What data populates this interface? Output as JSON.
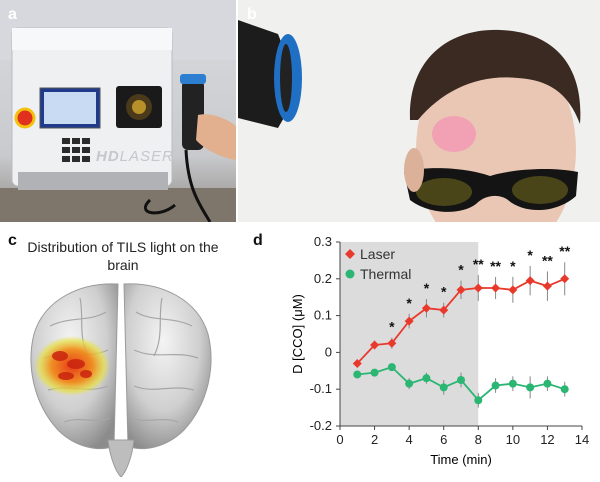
{
  "panels": {
    "a": {
      "label": "a",
      "device_brand": "LASER",
      "device_brand_prefix": "HD"
    },
    "b": {
      "label": "b"
    },
    "c": {
      "label": "c",
      "title": "Distribution of TILS light on the brain"
    },
    "d": {
      "label": "d"
    }
  },
  "chart_data": {
    "type": "line",
    "xlabel": "Time (min)",
    "ylabel": "D [CCO] (μM)",
    "xlim": [
      0,
      14
    ],
    "ylim": [
      -0.2,
      0.3
    ],
    "xticks": [
      0,
      2,
      4,
      6,
      8,
      10,
      12,
      14
    ],
    "yticks": [
      -0.2,
      -0.1,
      0,
      0.1,
      0.2,
      0.3
    ],
    "ytick_labels": [
      "-0.2",
      "-0.1",
      "0",
      "0.1",
      "0.2",
      "0.3"
    ],
    "shaded_region": [
      0,
      8
    ],
    "grid": false,
    "legend_position": "top-left",
    "x": [
      1,
      2,
      3,
      4,
      5,
      6,
      7,
      8,
      9,
      10,
      11,
      12,
      13
    ],
    "series": [
      {
        "name": "Laser",
        "color": "#e8392c",
        "marker": "diamond",
        "values": [
          -0.03,
          0.02,
          0.025,
          0.085,
          0.12,
          0.115,
          0.17,
          0.175,
          0.175,
          0.17,
          0.195,
          0.18,
          0.2
        ],
        "errors": [
          0.01,
          0.012,
          0.015,
          0.02,
          0.025,
          0.02,
          0.025,
          0.035,
          0.03,
          0.035,
          0.04,
          0.04,
          0.045
        ]
      },
      {
        "name": "Thermal",
        "color": "#2bb673",
        "marker": "circle",
        "values": [
          -0.06,
          -0.055,
          -0.04,
          -0.085,
          -0.07,
          -0.095,
          -0.075,
          -0.13,
          -0.09,
          -0.085,
          -0.095,
          -0.085,
          -0.1
        ],
        "errors": [
          0.01,
          0.01,
          0.01,
          0.015,
          0.015,
          0.02,
          0.02,
          0.02,
          0.02,
          0.02,
          0.03,
          0.02,
          0.02
        ]
      }
    ],
    "significance": [
      {
        "x": 3,
        "mark": "*"
      },
      {
        "x": 4,
        "mark": "*"
      },
      {
        "x": 5,
        "mark": "*"
      },
      {
        "x": 6,
        "mark": "*"
      },
      {
        "x": 7,
        "mark": "*"
      },
      {
        "x": 8,
        "mark": "**"
      },
      {
        "x": 9,
        "mark": "**"
      },
      {
        "x": 10,
        "mark": "*"
      },
      {
        "x": 11,
        "mark": "*"
      },
      {
        "x": 12,
        "mark": "**"
      },
      {
        "x": 13,
        "mark": "**"
      }
    ]
  }
}
